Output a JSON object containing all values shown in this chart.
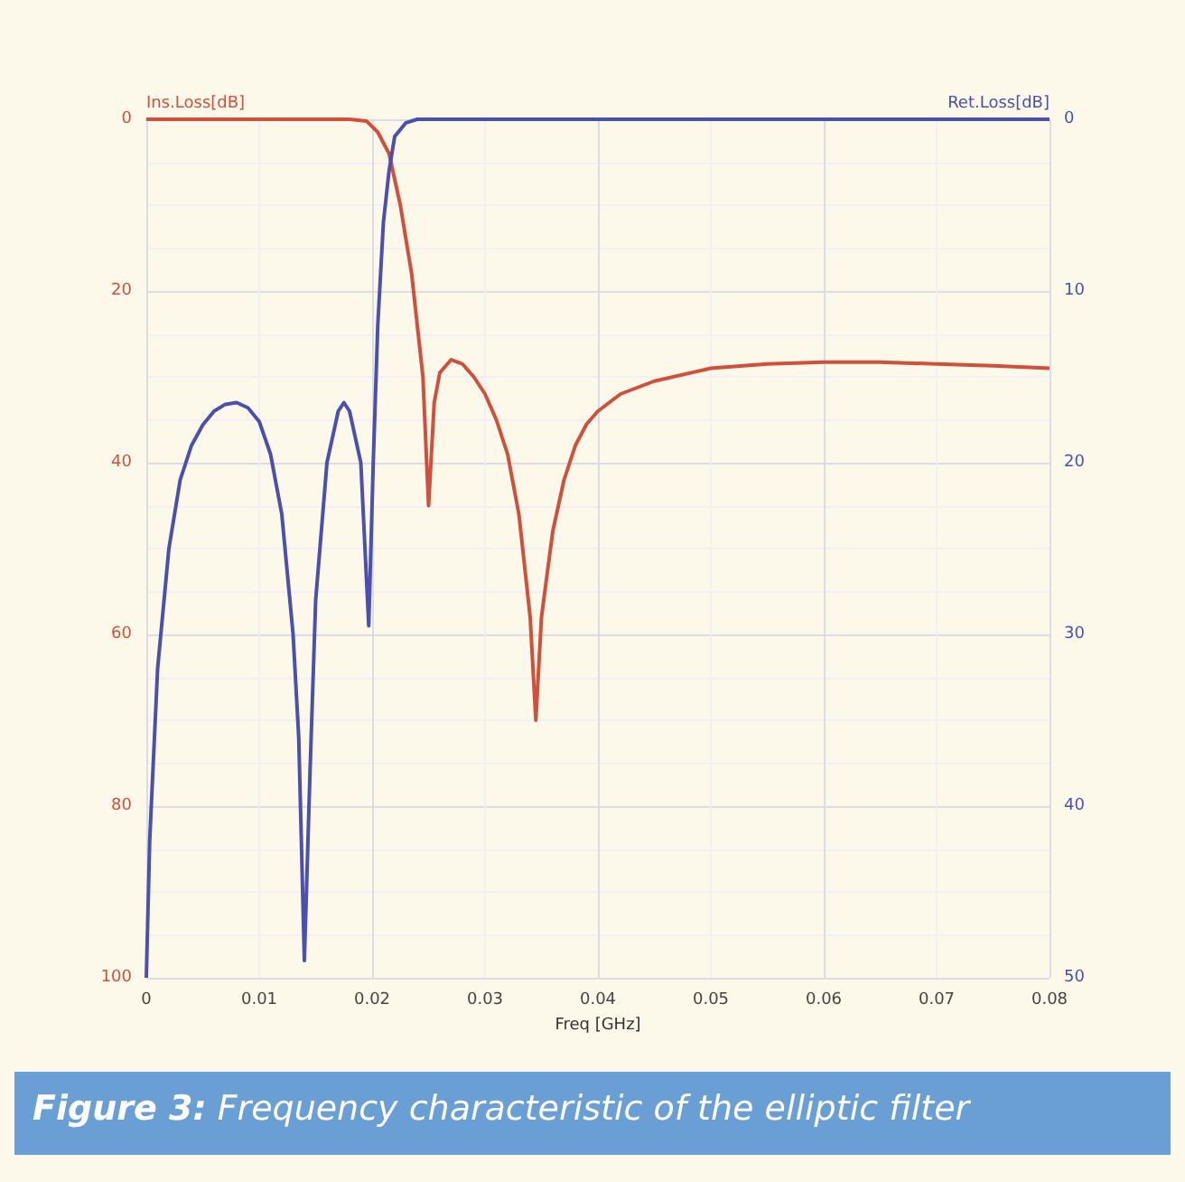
{
  "chart_data": {
    "type": "line",
    "xlabel": "Freq [GHz]",
    "ylabel": "Ins.Loss[dB]",
    "y2label": "Ret.Loss[dB]",
    "annotations": [
      "Figure 3: Frequency characteristic of the elliptic filter"
    ],
    "xlim": [
      0,
      0.08
    ],
    "xticks": [
      0,
      0.01,
      0.02,
      0.03,
      0.04,
      0.05,
      0.06,
      0.07,
      0.08
    ],
    "ylim": [
      100,
      0
    ],
    "yticks": [
      0,
      20,
      40,
      60,
      80,
      100
    ],
    "y2lim": [
      50,
      0
    ],
    "y2ticks": [
      0,
      10,
      20,
      30,
      40,
      50
    ],
    "grid": true,
    "marker": "none",
    "line_style": "solid",
    "series": [
      {
        "color": "#d0503c",
        "axis": "y",
        "x": [
          0,
          0.018,
          0.0195,
          0.0205,
          0.0215,
          0.0225,
          0.0235,
          0.0245,
          0.025,
          0.0255,
          0.026,
          0.027,
          0.028,
          0.029,
          0.03,
          0.031,
          0.032,
          0.033,
          0.034,
          0.0345,
          0.035,
          0.036,
          0.037,
          0.038,
          0.039,
          0.04,
          0.042,
          0.045,
          0.05,
          0.055,
          0.06,
          0.065,
          0.07,
          0.075,
          0.08
        ],
        "values": [
          0,
          0,
          0.2,
          1.5,
          4,
          10,
          18,
          30,
          45,
          33,
          29.5,
          28,
          28.5,
          30,
          32,
          35,
          39,
          46,
          58,
          70,
          58,
          48,
          42,
          38,
          35.5,
          34,
          32,
          30.5,
          29,
          28.5,
          28.3,
          28.3,
          28.5,
          28.7,
          29
        ]
      },
      {
        "color": "#4a4fb0",
        "axis": "y2",
        "x": [
          0,
          0.0003,
          0.001,
          0.002,
          0.003,
          0.004,
          0.005,
          0.006,
          0.007,
          0.008,
          0.009,
          0.01,
          0.011,
          0.012,
          0.013,
          0.0135,
          0.014,
          0.0145,
          0.015,
          0.016,
          0.017,
          0.0175,
          0.018,
          0.019,
          0.0197,
          0.0201,
          0.0205,
          0.021,
          0.0215,
          0.022,
          0.023,
          0.024,
          0.08
        ],
        "values": [
          50,
          42,
          32,
          25,
          21,
          19,
          17.8,
          17,
          16.6,
          16.5,
          16.8,
          17.6,
          19.5,
          23,
          30,
          36,
          49,
          38,
          28,
          20,
          17,
          16.5,
          17,
          20,
          29.5,
          20,
          12,
          6,
          3,
          1,
          0.2,
          0,
          0
        ]
      }
    ]
  }
}
